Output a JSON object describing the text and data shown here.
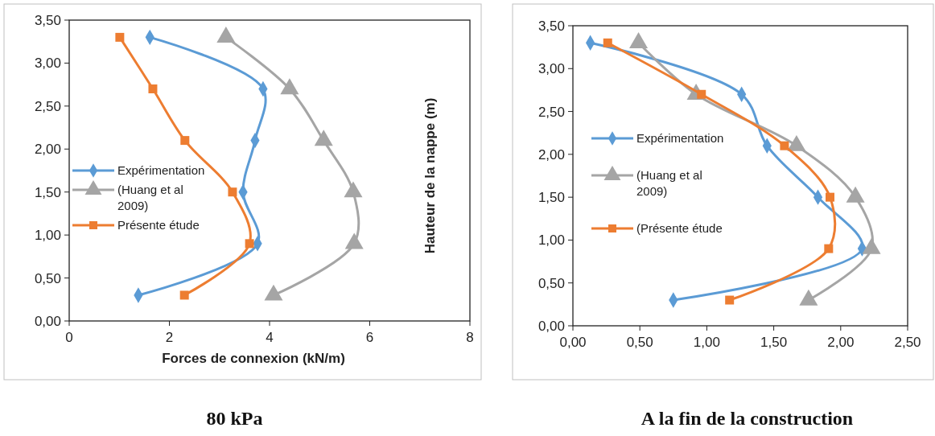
{
  "chart_data": [
    {
      "type": "line",
      "title": "80 kPa",
      "xlabel": "Forces de connexion (kN/m)",
      "xlim": [
        0,
        8
      ],
      "xticks": [
        0,
        2,
        4,
        6,
        8
      ],
      "ylim": [
        0,
        3.5
      ],
      "yticks": [
        {
          "value": 0,
          "label": "0,00"
        },
        {
          "value": 0.5,
          "label": "0,50"
        },
        {
          "value": 1,
          "label": "1,00"
        },
        {
          "value": 1.5,
          "label": "1,50"
        },
        {
          "value": 2,
          "label": "2,00"
        },
        {
          "value": 2.5,
          "label": "2,50"
        },
        {
          "value": 3,
          "label": "3,00"
        },
        {
          "value": 3.5,
          "label": "3,50"
        }
      ],
      "legend": "left",
      "grid": false,
      "series": [
        {
          "name": "Expérimentation",
          "color": "#5b9bd5",
          "marker": "diamond",
          "x": [
            1.61,
            3.87,
            3.71,
            3.47,
            3.76,
            1.38
          ],
          "values": [
            3.3,
            2.7,
            2.1,
            1.5,
            0.9,
            0.3
          ]
        },
        {
          "name": "(Huang et al 2009)",
          "color": "#a5a5a5",
          "marker": "triangle",
          "x": [
            3.13,
            4.4,
            5.08,
            5.67,
            5.69,
            4.08
          ],
          "values": [
            3.3,
            2.7,
            2.1,
            1.5,
            0.9,
            0.3
          ]
        },
        {
          "name": "Présente étude",
          "color": "#ed7d31",
          "marker": "square",
          "x": [
            1.01,
            1.67,
            2.31,
            3.26,
            3.6,
            2.3
          ],
          "values": [
            3.3,
            2.7,
            2.1,
            1.5,
            0.9,
            0.3
          ]
        }
      ]
    },
    {
      "type": "line",
      "title": "A la fin de la construction",
      "ylabel": "Hauteur de la nappe (m)",
      "xlim": [
        0,
        2.5
      ],
      "xticks": [
        {
          "value": 0,
          "label": "0,00"
        },
        {
          "value": 0.5,
          "label": "0,50"
        },
        {
          "value": 1,
          "label": "1,00"
        },
        {
          "value": 1.5,
          "label": "1,50"
        },
        {
          "value": 2,
          "label": "2,00"
        },
        {
          "value": 2.5,
          "label": "2,50"
        }
      ],
      "ylim": [
        0,
        3.5
      ],
      "yticks": [
        {
          "value": 0,
          "label": "0,00"
        },
        {
          "value": 0.5,
          "label": "0,50"
        },
        {
          "value": 1,
          "label": "1,00"
        },
        {
          "value": 1.5,
          "label": "1,50"
        },
        {
          "value": 2,
          "label": "2,00"
        },
        {
          "value": 2.5,
          "label": "2,50"
        },
        {
          "value": 3,
          "label": "3,00"
        },
        {
          "value": 3.5,
          "label": "3,50"
        }
      ],
      "legend": "left",
      "grid": false,
      "series": [
        {
          "name": "Expérimentation",
          "color": "#5b9bd5",
          "marker": "diamond",
          "x": [
            0.13,
            1.26,
            1.45,
            1.83,
            2.16,
            0.75
          ],
          "values": [
            3.3,
            2.7,
            2.1,
            1.5,
            0.9,
            0.3
          ]
        },
        {
          "name": "(Huang et al 2009)",
          "color": "#a5a5a5",
          "marker": "triangle",
          "x": [
            0.49,
            0.92,
            1.67,
            2.11,
            2.23,
            1.76
          ],
          "values": [
            3.3,
            2.7,
            2.1,
            1.5,
            0.9,
            0.3
          ]
        },
        {
          "name": "(Présente étude",
          "color": "#ed7d31",
          "marker": "square",
          "x": [
            0.26,
            0.96,
            1.58,
            1.92,
            1.91,
            1.17
          ],
          "values": [
            3.3,
            2.7,
            2.1,
            1.5,
            0.9,
            0.3
          ]
        }
      ]
    }
  ]
}
